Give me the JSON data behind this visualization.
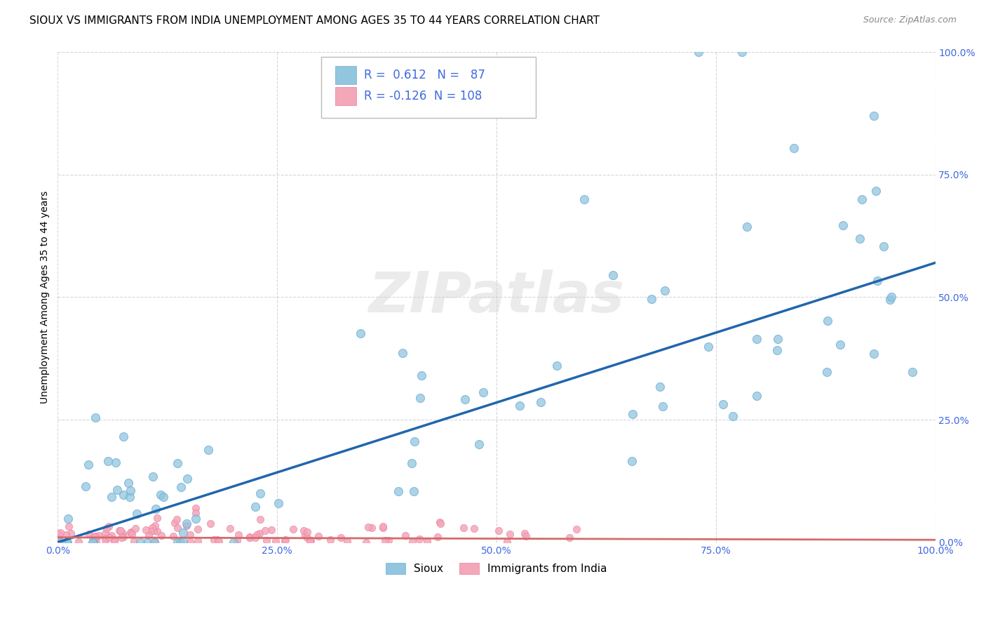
{
  "title": "SIOUX VS IMMIGRANTS FROM INDIA UNEMPLOYMENT AMONG AGES 35 TO 44 YEARS CORRELATION CHART",
  "source": "Source: ZipAtlas.com",
  "ylabel": "Unemployment Among Ages 35 to 44 years",
  "sioux_R": 0.612,
  "sioux_N": 87,
  "india_R": -0.126,
  "india_N": 108,
  "sioux_color": "#92c5de",
  "sioux_edge_color": "#6baed6",
  "india_color": "#f4a7b9",
  "india_edge_color": "#e87ca0",
  "sioux_line_color": "#2166ac",
  "india_line_color": "#d46b6b",
  "watermark_color": "#d8d8d8",
  "background_color": "#ffffff",
  "grid_color": "#cccccc",
  "tick_color": "#4169e1",
  "title_fontsize": 11,
  "source_fontsize": 9,
  "legend_fontsize": 12,
  "ytick_values": [
    0.0,
    0.25,
    0.5,
    0.75,
    1.0
  ],
  "xtick_values": [
    0.0,
    0.25,
    0.5,
    0.75,
    1.0
  ],
  "sioux_line_x": [
    0.0,
    1.0
  ],
  "sioux_line_y": [
    0.0,
    0.57
  ],
  "india_line_x": [
    0.0,
    1.0
  ],
  "india_line_y": [
    0.01,
    0.005
  ]
}
